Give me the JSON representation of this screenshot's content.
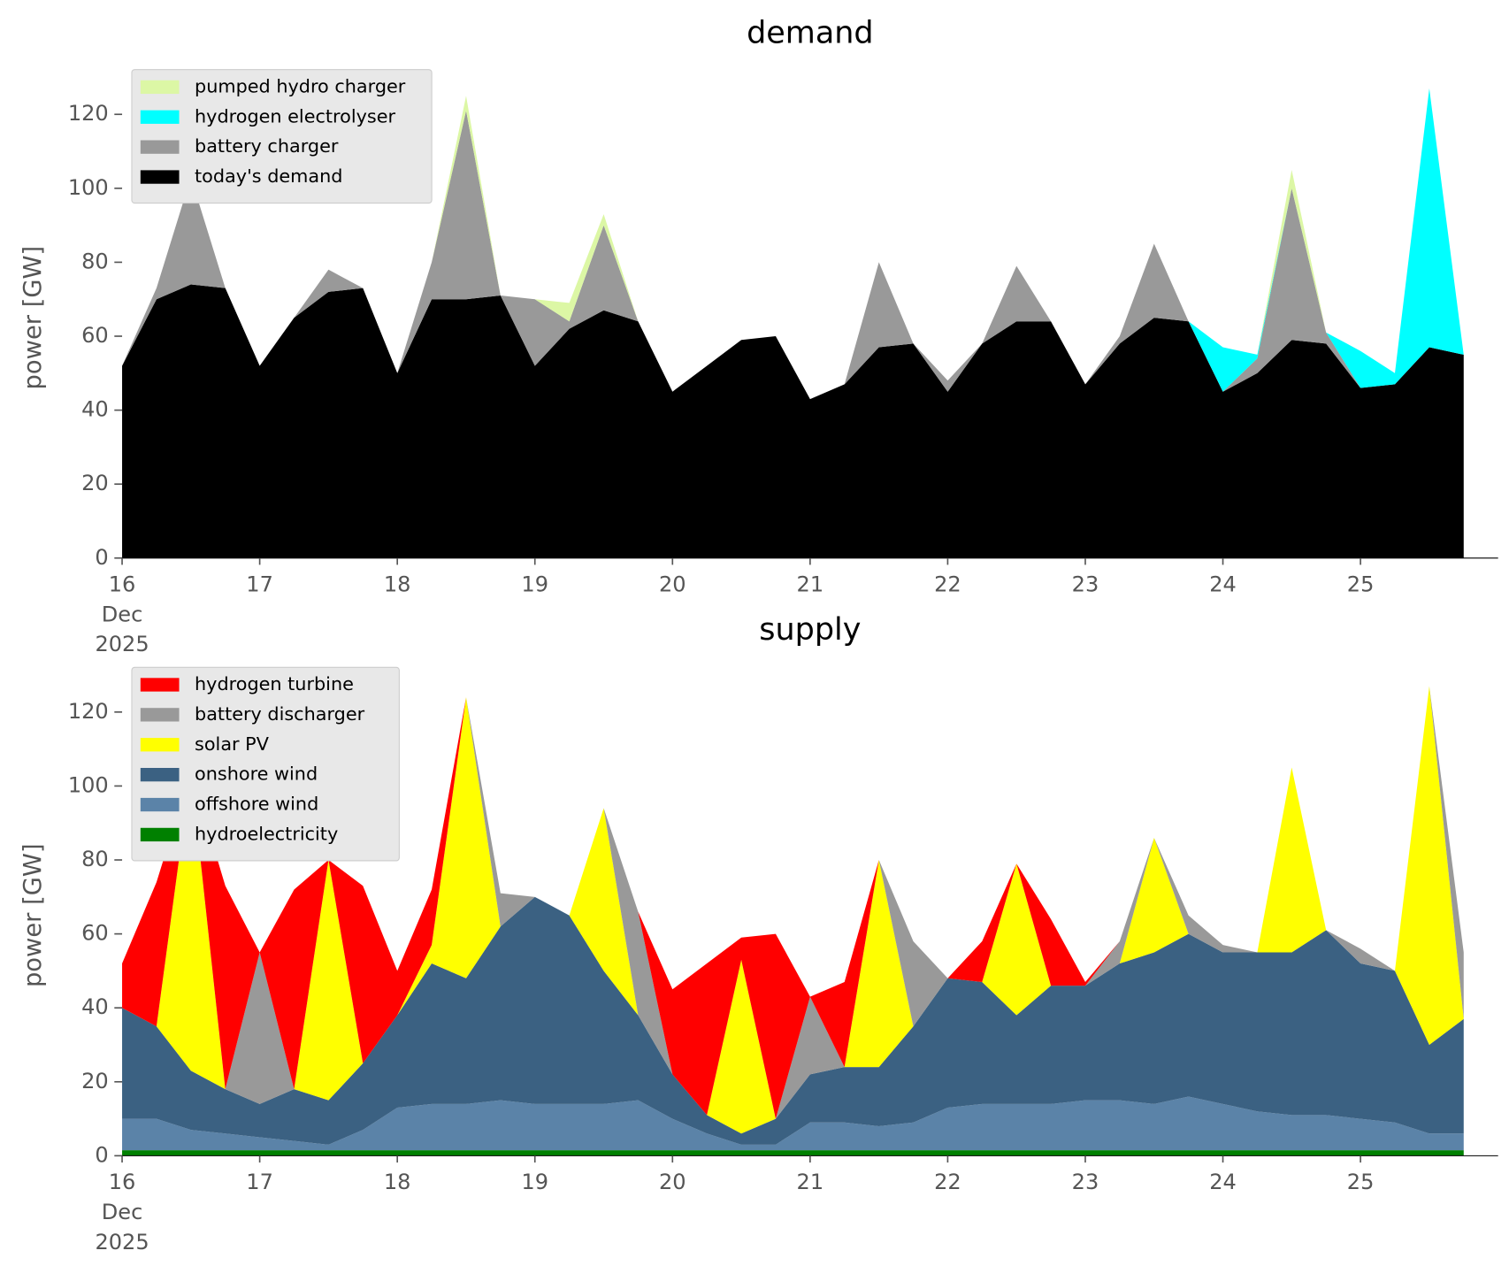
{
  "chart_data": [
    {
      "type": "stacked_area",
      "title": "demand",
      "ylabel": "power [GW]",
      "x": [
        16,
        16.25,
        16.5,
        16.75,
        17,
        17.25,
        17.5,
        17.75,
        18,
        18.25,
        18.5,
        18.75,
        19,
        19.25,
        19.5,
        19.75,
        20,
        20.25,
        20.5,
        20.75,
        21,
        21.25,
        21.5,
        21.75,
        22,
        22.25,
        22.5,
        22.75,
        23,
        23.25,
        23.5,
        23.75,
        24,
        24.25,
        24.5,
        24.75,
        25,
        25.25,
        25.5,
        25.75
      ],
      "xlim": [
        16,
        26
      ],
      "xticks": [
        {
          "value": 16,
          "label": "16\nDec\n2025"
        },
        17,
        18,
        19,
        20,
        21,
        22,
        23,
        24,
        25
      ],
      "ylim": [
        0,
        130
      ],
      "yticks": [
        0,
        20,
        40,
        60,
        80,
        100,
        120
      ],
      "legend": "upper left",
      "series": [
        {
          "name": "today's demand",
          "color": "#000000",
          "values": [
            52,
            70,
            74,
            73,
            52,
            65,
            72,
            73,
            50,
            70,
            70,
            71,
            52,
            62,
            67,
            64,
            45,
            52,
            59,
            60,
            43,
            47,
            57,
            58,
            45,
            58,
            64,
            64,
            47,
            58,
            65,
            64,
            45,
            50,
            59,
            58,
            46,
            47,
            57,
            55
          ]
        },
        {
          "name": "battery charger",
          "color": "#999999",
          "values": [
            0,
            3,
            29,
            0,
            0,
            0,
            6,
            0,
            0,
            10,
            51,
            0,
            18,
            2,
            23,
            0,
            0,
            0,
            0,
            0,
            0,
            0,
            23,
            0,
            3,
            0,
            15,
            0,
            0,
            2,
            20,
            0,
            0,
            4,
            41,
            3,
            0,
            0,
            0,
            0
          ]
        },
        {
          "name": "hydrogen electrolyser",
          "color": "#00ffff",
          "values": [
            0,
            0,
            0,
            0,
            0,
            0,
            0,
            0,
            0,
            0,
            0,
            0,
            0,
            0,
            0,
            0,
            0,
            0,
            0,
            0,
            0,
            0,
            0,
            0,
            0,
            0,
            0,
            0,
            0,
            0,
            0,
            0,
            12,
            1,
            0,
            0,
            10,
            3,
            70,
            0
          ]
        },
        {
          "name": "pumped hydro charger",
          "color": "#dcf7a5",
          "values": [
            0,
            0,
            0,
            0,
            0,
            0,
            0,
            0,
            0,
            0,
            4,
            0,
            0,
            5,
            3,
            0,
            0,
            0,
            0,
            0,
            0,
            0,
            0,
            0,
            0,
            0,
            0,
            0,
            0,
            0,
            0,
            0,
            0,
            0,
            5,
            0,
            0,
            0,
            0,
            0
          ]
        }
      ]
    },
    {
      "type": "stacked_area",
      "title": "supply",
      "ylabel": "power [GW]",
      "x": [
        16,
        16.25,
        16.5,
        16.75,
        17,
        17.25,
        17.5,
        17.75,
        18,
        18.25,
        18.5,
        18.75,
        19,
        19.25,
        19.5,
        19.75,
        20,
        20.25,
        20.5,
        20.75,
        21,
        21.25,
        21.5,
        21.75,
        22,
        22.25,
        22.5,
        22.75,
        23,
        23.25,
        23.5,
        23.75,
        24,
        24.25,
        24.5,
        24.75,
        25,
        25.25,
        25.5,
        25.75
      ],
      "xlim": [
        16,
        26
      ],
      "xticks": [
        {
          "value": 16,
          "label": "16\nDec\n2025"
        },
        17,
        18,
        19,
        20,
        21,
        22,
        23,
        24,
        25
      ],
      "ylim": [
        0,
        130
      ],
      "yticks": [
        0,
        20,
        40,
        60,
        80,
        100,
        120
      ],
      "legend": "upper left",
      "series": [
        {
          "name": "hydroelectricity",
          "color": "#008000",
          "values": [
            1.5,
            1.5,
            1.5,
            1.5,
            1.5,
            1.5,
            1.5,
            1.5,
            1.5,
            1.5,
            1.5,
            1.5,
            1.5,
            1.5,
            1.5,
            1.5,
            1.5,
            1.5,
            1.5,
            1.5,
            1.5,
            1.5,
            1.5,
            1.5,
            1.5,
            1.5,
            1.5,
            1.5,
            1.5,
            1.5,
            1.5,
            1.5,
            1.5,
            1.5,
            1.5,
            1.5,
            1.5,
            1.5,
            1.5,
            1.5
          ]
        },
        {
          "name": "offshore wind",
          "color": "#5b83a8",
          "values": [
            8.5,
            8.5,
            5.5,
            4.5,
            3.5,
            2.5,
            1.5,
            5.5,
            11.5,
            12.5,
            12.5,
            13.5,
            12.5,
            12.5,
            12.5,
            13.5,
            8.5,
            4.5,
            1.5,
            1.5,
            7.5,
            7.5,
            6.5,
            7.5,
            11.5,
            12.5,
            12.5,
            12.5,
            13.5,
            13.5,
            12.5,
            14.5,
            12.5,
            10.5,
            9.5,
            9.5,
            8.5,
            7.5,
            4.5,
            4.5
          ]
        },
        {
          "name": "onshore wind",
          "color": "#3b6182",
          "values": [
            30,
            25,
            16,
            12,
            9,
            14,
            12,
            18,
            25,
            38,
            34,
            47,
            56,
            51,
            36,
            23,
            12,
            5,
            3,
            7,
            13,
            15,
            16,
            26,
            35,
            33,
            24,
            32,
            31,
            37,
            41,
            44,
            41,
            43,
            44,
            50,
            42,
            41,
            24,
            31
          ]
        },
        {
          "name": "solar PV",
          "color": "#ffff00",
          "values": [
            0,
            0,
            81,
            0,
            0,
            0,
            65,
            0,
            0,
            5,
            76,
            0,
            0,
            0,
            44,
            0,
            0,
            0,
            47,
            0,
            0,
            0,
            56,
            0,
            0,
            0,
            41,
            0,
            0,
            0,
            31,
            0,
            0,
            0,
            50,
            0,
            0,
            0,
            97,
            0
          ]
        },
        {
          "name": "battery discharger",
          "color": "#999999",
          "values": [
            0,
            0,
            0,
            0,
            41,
            0,
            0,
            0,
            0,
            0,
            0,
            9,
            0,
            0,
            0,
            28,
            0,
            0,
            0,
            0,
            21,
            0,
            0,
            23,
            0,
            0,
            0,
            0,
            0,
            6,
            0,
            5,
            2,
            0,
            0,
            0,
            4,
            0,
            0,
            18
          ]
        },
        {
          "name": "hydrogen turbine",
          "color": "#ff0000",
          "values": [
            12,
            39,
            0,
            55,
            0,
            54,
            0,
            48,
            12,
            15,
            0,
            0,
            0,
            0,
            0,
            0,
            23,
            41,
            6,
            50,
            0,
            23,
            0,
            0,
            0,
            11,
            0,
            18,
            1,
            0,
            0,
            0,
            0,
            0,
            0,
            0,
            0,
            0,
            0,
            0
          ]
        }
      ]
    }
  ]
}
